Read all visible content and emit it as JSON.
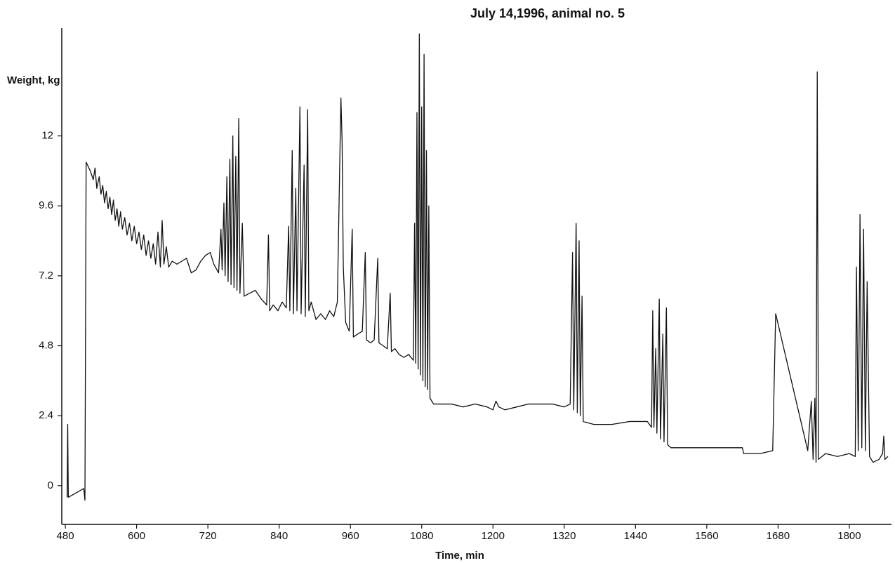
{
  "chart_data": {
    "type": "line",
    "title": "July 14,1996, animal no. 5",
    "y_label": "Weight, kg",
    "x_label": "Time, min",
    "xlim": [
      474,
      1871
    ],
    "ylim": [
      -1.33,
      15.7
    ],
    "xticks": [
      480,
      600,
      720,
      840,
      960,
      1080,
      1200,
      1320,
      1440,
      1560,
      1680,
      1800
    ],
    "yticks": [
      0,
      2.4,
      4.8,
      7.2,
      9.6,
      12
    ],
    "x": [
      483,
      484,
      485,
      511,
      513,
      515,
      522,
      527,
      530,
      533,
      537,
      540,
      543,
      546,
      549,
      552,
      555,
      558,
      561,
      564,
      567,
      570,
      573,
      576,
      580,
      584,
      588,
      592,
      596,
      600,
      604,
      608,
      612,
      616,
      620,
      624,
      628,
      632,
      636,
      640,
      643,
      646,
      650,
      654,
      660,
      668,
      676,
      684,
      692,
      700,
      708,
      716,
      724,
      730,
      738,
      742,
      744,
      747,
      749,
      752,
      754,
      757,
      759,
      762,
      764,
      767,
      769,
      772,
      774,
      778,
      781,
      790,
      800,
      810,
      819,
      822,
      824,
      830,
      838,
      845,
      852,
      856,
      858,
      862,
      864,
      868,
      870,
      875,
      877,
      882,
      884,
      888,
      890,
      894,
      902,
      910,
      918,
      925,
      932,
      938,
      942,
      944,
      946,
      948,
      952,
      958,
      963,
      965,
      972,
      980,
      985,
      987,
      994,
      1000,
      1006,
      1008,
      1015,
      1022,
      1027,
      1029,
      1035,
      1042,
      1050,
      1058,
      1066,
      1068,
      1070,
      1072,
      1074,
      1076,
      1078,
      1080,
      1082,
      1084,
      1086,
      1088,
      1090,
      1092,
      1094,
      1100,
      1110,
      1130,
      1150,
      1170,
      1190,
      1200,
      1205,
      1210,
      1220,
      1240,
      1260,
      1280,
      1300,
      1320,
      1330,
      1334,
      1336,
      1340,
      1342,
      1345,
      1347,
      1350,
      1352,
      1370,
      1400,
      1430,
      1460,
      1467,
      1469,
      1471,
      1474,
      1476,
      1480,
      1482,
      1486,
      1488,
      1492,
      1494,
      1500,
      1540,
      1600,
      1620,
      1622,
      1650,
      1671,
      1676,
      1730,
      1736,
      1739,
      1742,
      1744,
      1746,
      1748,
      1760,
      1780,
      1800,
      1810,
      1812,
      1815,
      1818,
      1821,
      1824,
      1827,
      1830,
      1834,
      1840,
      1850,
      1856,
      1858,
      1860,
      1865
    ],
    "series": [
      {
        "color": "#111111",
        "values": [
          -0.4,
          2.1,
          -0.4,
          -0.1,
          -0.5,
          11.1,
          10.8,
          10.5,
          10.9,
          10.2,
          10.6,
          10.0,
          10.3,
          9.7,
          10.1,
          9.5,
          9.9,
          9.3,
          9.8,
          9.1,
          9.5,
          8.9,
          9.4,
          8.8,
          9.2,
          8.6,
          9.0,
          8.4,
          8.9,
          8.3,
          8.7,
          8.1,
          8.6,
          7.9,
          8.4,
          7.8,
          8.3,
          7.6,
          8.7,
          7.5,
          9.1,
          7.6,
          8.2,
          7.5,
          7.7,
          7.6,
          7.7,
          7.8,
          7.3,
          7.4,
          7.7,
          7.9,
          8.0,
          7.6,
          7.3,
          8.8,
          7.4,
          9.7,
          7.2,
          10.6,
          7.0,
          11.2,
          6.9,
          12.0,
          6.8,
          11.3,
          6.7,
          12.6,
          6.6,
          9.0,
          6.5,
          6.6,
          6.7,
          6.4,
          6.2,
          8.6,
          6.0,
          6.2,
          6.0,
          6.3,
          6.1,
          8.9,
          6.0,
          11.5,
          5.9,
          10.2,
          6.0,
          13.0,
          5.9,
          11.0,
          5.8,
          12.9,
          6.0,
          6.3,
          5.7,
          5.9,
          5.7,
          6.0,
          5.8,
          6.3,
          11.0,
          13.3,
          11.8,
          7.5,
          5.6,
          5.3,
          8.8,
          5.1,
          5.2,
          5.3,
          8.0,
          5.0,
          4.9,
          5.0,
          7.8,
          4.9,
          4.8,
          4.7,
          6.6,
          4.6,
          4.7,
          4.5,
          4.4,
          4.5,
          4.3,
          9.0,
          4.2,
          12.8,
          4.0,
          15.5,
          3.8,
          13.0,
          3.6,
          14.8,
          3.4,
          11.5,
          3.3,
          9.6,
          3.0,
          2.8,
          2.8,
          2.8,
          2.7,
          2.8,
          2.7,
          2.6,
          2.9,
          2.7,
          2.6,
          2.7,
          2.8,
          2.8,
          2.8,
          2.7,
          2.8,
          8.0,
          2.6,
          9.0,
          2.5,
          8.4,
          2.4,
          6.5,
          2.2,
          2.1,
          2.1,
          2.2,
          2.2,
          2.0,
          6.0,
          2.0,
          4.7,
          1.8,
          6.4,
          1.6,
          5.2,
          1.5,
          6.1,
          1.4,
          1.3,
          1.3,
          1.3,
          1.3,
          1.1,
          1.1,
          1.2,
          5.9,
          1.2,
          2.9,
          0.9,
          3.0,
          0.8,
          14.2,
          0.9,
          1.1,
          1.0,
          1.1,
          1.0,
          7.5,
          1.2,
          9.3,
          1.3,
          8.8,
          1.2,
          7.0,
          1.0,
          0.8,
          0.9,
          1.1,
          1.7,
          0.9,
          1.0
        ]
      }
    ]
  }
}
